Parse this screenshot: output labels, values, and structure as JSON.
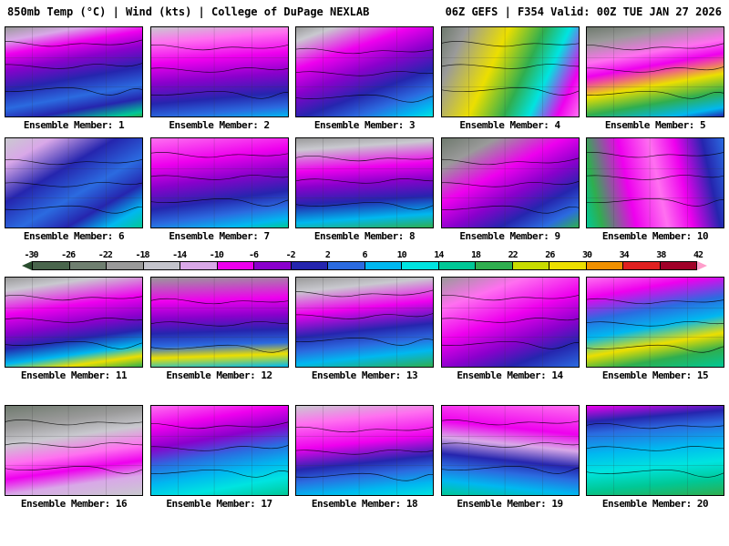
{
  "header": {
    "left": "850mb Temp (°C) | Wind (kts) | College of DuPage NEXLAB",
    "right": "06Z GEFS | F354 Valid: 00Z TUE JAN 27 2026"
  },
  "colorbar": {
    "ticks": [
      "-30",
      "-26",
      "-22",
      "-18",
      "-14",
      "-10",
      "-6",
      "-2",
      "2",
      "6",
      "10",
      "14",
      "18",
      "22",
      "26",
      "30",
      "34",
      "38",
      "42"
    ],
    "segments": [
      "#2a4d2f",
      "#49654c",
      "#6f7f70",
      "#9a9a9a",
      "#c4c4cc",
      "#d9a8e8",
      "#ee00ee",
      "#8a00cc",
      "#2525ae",
      "#2b6be0",
      "#00b8f0",
      "#00e4e0",
      "#00c896",
      "#2fae4f",
      "#c8dc00",
      "#ecdf00",
      "#f09000",
      "#e02020",
      "#a00028",
      "#ff9ecb"
    ]
  },
  "members": [
    {
      "label": "Ensemble Member: 1",
      "angle": 170,
      "stops": [
        [
          "#9a9a9a",
          0
        ],
        [
          "#d9a8e8",
          12
        ],
        [
          "#ee00ee",
          24
        ],
        [
          "#8a00cc",
          38
        ],
        [
          "#2525ae",
          56
        ],
        [
          "#2b6be0",
          72
        ],
        [
          "#2525ae",
          84
        ],
        [
          "#00c896",
          96
        ],
        [
          "#2fae4f",
          100
        ]
      ]
    },
    {
      "label": "Ensemble Member: 2",
      "angle": 175,
      "stops": [
        [
          "#c9c9cf",
          0
        ],
        [
          "#ff70f0",
          16
        ],
        [
          "#ee00ee",
          36
        ],
        [
          "#8a00cc",
          56
        ],
        [
          "#2525ae",
          76
        ],
        [
          "#2b6be0",
          90
        ],
        [
          "#00b8f0",
          100
        ]
      ]
    },
    {
      "label": "Ensemble Member: 3",
      "angle": 160,
      "stops": [
        [
          "#9a9a9a",
          0
        ],
        [
          "#c9c9cf",
          10
        ],
        [
          "#ee00ee",
          30
        ],
        [
          "#8a00cc",
          48
        ],
        [
          "#2525ae",
          66
        ],
        [
          "#2b6be0",
          80
        ],
        [
          "#00b8f0",
          92
        ],
        [
          "#00e4e0",
          100
        ]
      ]
    },
    {
      "label": "Ensemble Member: 4",
      "angle": 115,
      "stops": [
        [
          "#6f7a6e",
          0
        ],
        [
          "#9a9a9a",
          14
        ],
        [
          "#ecdf00",
          38
        ],
        [
          "#2fae4f",
          58
        ],
        [
          "#00e4e0",
          72
        ],
        [
          "#ee00ee",
          88
        ],
        [
          "#ff70f0",
          100
        ]
      ]
    },
    {
      "label": "Ensemble Member: 5",
      "angle": 170,
      "stops": [
        [
          "#6f7a6e",
          0
        ],
        [
          "#9a9a9a",
          14
        ],
        [
          "#ff70f0",
          32
        ],
        [
          "#ee00ee",
          44
        ],
        [
          "#ecdf00",
          62
        ],
        [
          "#2fae4f",
          78
        ],
        [
          "#00b8f0",
          92
        ],
        [
          "#2525ae",
          100
        ]
      ]
    },
    {
      "label": "Ensemble Member: 6",
      "angle": 150,
      "stops": [
        [
          "#c9c9cf",
          0
        ],
        [
          "#d9a8e8",
          16
        ],
        [
          "#2525ae",
          38
        ],
        [
          "#2b6be0",
          58
        ],
        [
          "#2525ae",
          74
        ],
        [
          "#00b8f0",
          88
        ],
        [
          "#00c896",
          100
        ]
      ]
    },
    {
      "label": "Ensemble Member: 7",
      "angle": 172,
      "stops": [
        [
          "#ff70f0",
          0
        ],
        [
          "#ee00ee",
          26
        ],
        [
          "#8a00cc",
          46
        ],
        [
          "#2525ae",
          66
        ],
        [
          "#2b6be0",
          80
        ],
        [
          "#00b8f0",
          92
        ],
        [
          "#00c896",
          100
        ]
      ]
    },
    {
      "label": "Ensemble Member: 8",
      "angle": 176,
      "stops": [
        [
          "#9a9a9a",
          0
        ],
        [
          "#c9c9cf",
          12
        ],
        [
          "#ee00ee",
          34
        ],
        [
          "#8a00cc",
          50
        ],
        [
          "#2525ae",
          68
        ],
        [
          "#00b8f0",
          86
        ],
        [
          "#2fae4f",
          100
        ]
      ]
    },
    {
      "label": "Ensemble Member: 9",
      "angle": 152,
      "stops": [
        [
          "#6f7a6e",
          0
        ],
        [
          "#9a9a9a",
          18
        ],
        [
          "#ee00ee",
          40
        ],
        [
          "#8a00cc",
          58
        ],
        [
          "#2525ae",
          74
        ],
        [
          "#2b6be0",
          88
        ],
        [
          "#2fae4f",
          100
        ]
      ]
    },
    {
      "label": "Ensemble Member: 10",
      "angle": 78,
      "stops": [
        [
          "#00c896",
          0
        ],
        [
          "#2fae4f",
          10
        ],
        [
          "#ee00ee",
          32
        ],
        [
          "#ff70f0",
          52
        ],
        [
          "#ee00ee",
          68
        ],
        [
          "#2525ae",
          86
        ],
        [
          "#2b6be0",
          100
        ]
      ]
    },
    {
      "label": "Ensemble Member: 11",
      "angle": 172,
      "stops": [
        [
          "#9a9a9a",
          0
        ],
        [
          "#c9c9cf",
          12
        ],
        [
          "#ee00ee",
          34
        ],
        [
          "#8a00cc",
          52
        ],
        [
          "#2525ae",
          66
        ],
        [
          "#00b8f0",
          80
        ],
        [
          "#ecdf00",
          90
        ],
        [
          "#2fae4f",
          100
        ]
      ]
    },
    {
      "label": "Ensemble Member: 12",
      "angle": 178,
      "stops": [
        [
          "#9a9a9a",
          0
        ],
        [
          "#ee00ee",
          26
        ],
        [
          "#8a00cc",
          44
        ],
        [
          "#2525ae",
          60
        ],
        [
          "#2b6be0",
          74
        ],
        [
          "#ecdf00",
          86
        ],
        [
          "#00b8f0",
          100
        ]
      ]
    },
    {
      "label": "Ensemble Member: 13",
      "angle": 174,
      "stops": [
        [
          "#9a9a9a",
          0
        ],
        [
          "#c9c9cf",
          14
        ],
        [
          "#ee00ee",
          36
        ],
        [
          "#2525ae",
          58
        ],
        [
          "#2b6be0",
          72
        ],
        [
          "#00b8f0",
          84
        ],
        [
          "#2fae4f",
          100
        ]
      ]
    },
    {
      "label": "Ensemble Member: 14",
      "angle": 160,
      "stops": [
        [
          "#9a9a9a",
          0
        ],
        [
          "#ff70f0",
          22
        ],
        [
          "#ee00ee",
          46
        ],
        [
          "#8a00cc",
          66
        ],
        [
          "#2525ae",
          82
        ],
        [
          "#2b6be0",
          100
        ]
      ]
    },
    {
      "label": "Ensemble Member: 15",
      "angle": 170,
      "stops": [
        [
          "#ff70f0",
          0
        ],
        [
          "#ee00ee",
          18
        ],
        [
          "#2b6be0",
          38
        ],
        [
          "#00b8f0",
          54
        ],
        [
          "#ecdf00",
          70
        ],
        [
          "#2fae4f",
          84
        ],
        [
          "#00c896",
          100
        ]
      ]
    },
    {
      "label": "Ensemble Member: 16",
      "angle": 172,
      "stops": [
        [
          "#6f7a6e",
          0
        ],
        [
          "#9a9a9a",
          20
        ],
        [
          "#c9c9cf",
          36
        ],
        [
          "#ff70f0",
          54
        ],
        [
          "#ee00ee",
          68
        ],
        [
          "#d9a8e8",
          82
        ],
        [
          "#c9c9cf",
          100
        ]
      ]
    },
    {
      "label": "Ensemble Member: 17",
      "angle": 170,
      "stops": [
        [
          "#ff70f0",
          0
        ],
        [
          "#ee00ee",
          20
        ],
        [
          "#8a00cc",
          38
        ],
        [
          "#2b6be0",
          54
        ],
        [
          "#00b8f0",
          70
        ],
        [
          "#00e4e0",
          84
        ],
        [
          "#00c896",
          100
        ]
      ]
    },
    {
      "label": "Ensemble Member: 18",
      "angle": 174,
      "stops": [
        [
          "#c9c9cf",
          0
        ],
        [
          "#ff70f0",
          18
        ],
        [
          "#ee00ee",
          42
        ],
        [
          "#2525ae",
          62
        ],
        [
          "#2b6be0",
          74
        ],
        [
          "#00b8f0",
          88
        ],
        [
          "#00e4e0",
          100
        ]
      ]
    },
    {
      "label": "Ensemble Member: 19",
      "angle": 186,
      "stops": [
        [
          "#ff70f0",
          0
        ],
        [
          "#ee00ee",
          28
        ],
        [
          "#d9a8e8",
          44
        ],
        [
          "#2525ae",
          60
        ],
        [
          "#2b6be0",
          72
        ],
        [
          "#00b8f0",
          86
        ],
        [
          "#00c896",
          100
        ]
      ]
    },
    {
      "label": "Ensemble Member: 20",
      "angle": 175,
      "stops": [
        [
          "#ee00ee",
          0
        ],
        [
          "#2525ae",
          16
        ],
        [
          "#2b6be0",
          28
        ],
        [
          "#00b8f0",
          48
        ],
        [
          "#00e4e0",
          66
        ],
        [
          "#00c896",
          84
        ],
        [
          "#2fae4f",
          100
        ]
      ]
    }
  ]
}
